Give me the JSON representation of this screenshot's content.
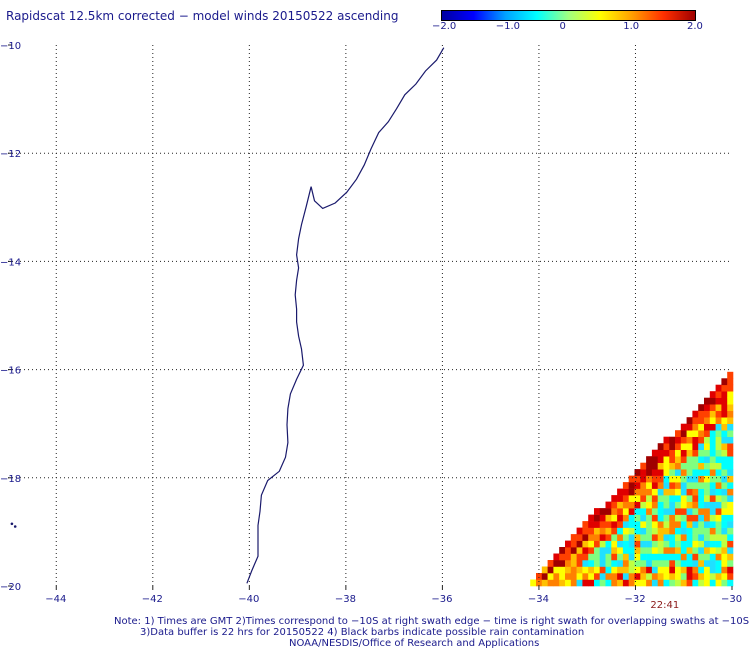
{
  "title": "Rapidscat 12.5km corrected − model winds 20150522 ascending",
  "colorbar": {
    "labels": [
      "−2.0",
      "−1.0",
      "0",
      "1.0",
      "2.0"
    ],
    "values": [
      -2.0,
      -1.0,
      0,
      1.0,
      2.0
    ],
    "colors": [
      "#0000a0",
      "#0000ff",
      "#00a0ff",
      "#00ffff",
      "#a0ff80",
      "#ffff00",
      "#ffa000",
      "#ff3000",
      "#a00000"
    ]
  },
  "map": {
    "lon_range": [
      -45,
      -30
    ],
    "lat_range": [
      -20,
      -10
    ],
    "lon_ticks": [
      -44,
      -42,
      -40,
      -38,
      -36,
      -34,
      -32,
      -30
    ],
    "lon_tick_labels": [
      "−44",
      "−42",
      "−40",
      "−38",
      "−36",
      "−34",
      "−32",
      "−30"
    ],
    "lat_ticks": [
      -10,
      -12,
      -14,
      -16,
      -18,
      -20
    ],
    "lat_tick_labels": [
      "−10",
      "−12",
      "−14",
      "−16",
      "−18",
      "−20"
    ],
    "grid": true,
    "coastline_color": "#1a1a6c",
    "coastline": [
      [
        -35.97,
        -10.05
      ],
      [
        -36.12,
        -10.28
      ],
      [
        -36.35,
        -10.48
      ],
      [
        -36.55,
        -10.72
      ],
      [
        -36.78,
        -10.92
      ],
      [
        -36.95,
        -11.18
      ],
      [
        -37.12,
        -11.42
      ],
      [
        -37.32,
        -11.62
      ],
      [
        -37.48,
        -11.92
      ],
      [
        -37.62,
        -12.22
      ],
      [
        -37.78,
        -12.48
      ],
      [
        -37.98,
        -12.72
      ],
      [
        -38.22,
        -12.92
      ],
      [
        -38.48,
        -13.02
      ],
      [
        -38.65,
        -12.88
      ],
      [
        -38.72,
        -12.62
      ],
      [
        -38.82,
        -12.98
      ],
      [
        -38.92,
        -13.32
      ],
      [
        -38.98,
        -13.58
      ],
      [
        -39.02,
        -13.88
      ],
      [
        -38.98,
        -14.12
      ],
      [
        -39.02,
        -14.35
      ],
      [
        -39.05,
        -14.62
      ],
      [
        -39.02,
        -14.88
      ],
      [
        -39.02,
        -15.12
      ],
      [
        -38.98,
        -15.38
      ],
      [
        -38.92,
        -15.62
      ],
      [
        -38.88,
        -15.92
      ],
      [
        -39.02,
        -16.18
      ],
      [
        -39.15,
        -16.45
      ],
      [
        -39.2,
        -16.72
      ],
      [
        -39.22,
        -17.02
      ],
      [
        -39.2,
        -17.35
      ],
      [
        -39.25,
        -17.62
      ],
      [
        -39.38,
        -17.88
      ],
      [
        -39.62,
        -18.05
      ],
      [
        -39.75,
        -18.32
      ],
      [
        -39.78,
        -18.62
      ],
      [
        -39.82,
        -18.88
      ],
      [
        -39.82,
        -19.18
      ],
      [
        -39.82,
        -19.45
      ],
      [
        -39.95,
        -19.72
      ],
      [
        -40.05,
        -19.95
      ]
    ],
    "islands": [
      [
        -44.92,
        -18.85
      ],
      [
        -44.85,
        -18.9
      ]
    ],
    "swath": {
      "timestamp": "22:41",
      "timestamp_lon": -31.4,
      "cell_size_deg": 0.12,
      "edge_bottom_lon": -34.3,
      "edge_top_lat": -16.05
    }
  },
  "notes": [
    "Note: 1) Times are GMT 2)Times correspond to −10S at right swath edge − time is right swath for overlapping swaths at −10S",
    "3)Data buffer is 22 hrs for 20150522 4) Black barbs indicate possible rain contamination",
    "NOAA/NESDIS/Office of Research and Applications"
  ]
}
